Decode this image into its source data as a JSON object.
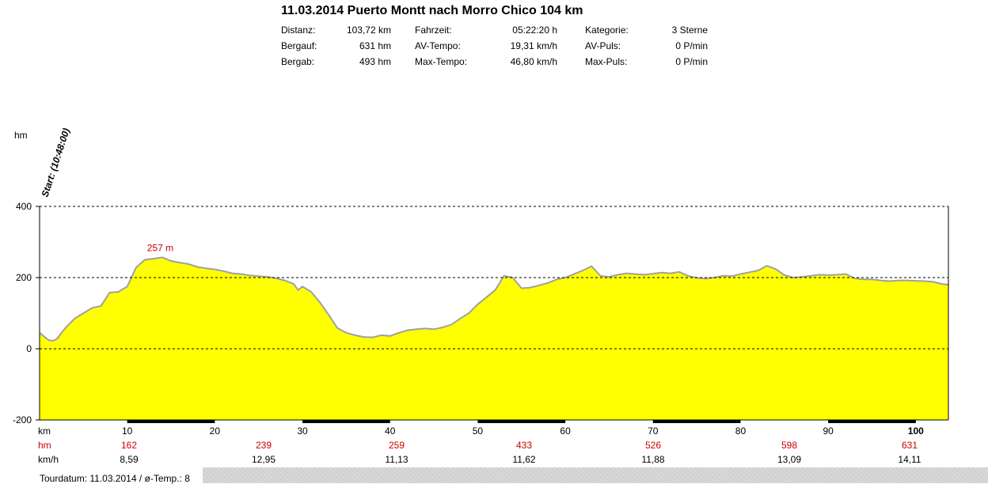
{
  "header": {
    "title": "11.03.2014 Puerto Montt nach Morro Chico 104 km"
  },
  "stats": {
    "col1": [
      {
        "label": "Distanz:",
        "value": "103,72 km"
      },
      {
        "label": "Bergauf:",
        "value": "631 hm"
      },
      {
        "label": "Bergab:",
        "value": "493 hm"
      }
    ],
    "col2": [
      {
        "label": "Fahrzeit:",
        "value": "05:22:20 h"
      },
      {
        "label": "AV-Tempo:",
        "value": "19,31 km/h"
      },
      {
        "label": "Max-Tempo:",
        "value": "46,80 km/h"
      }
    ],
    "col3": [
      {
        "label": "Kategorie:",
        "value": "3 Sterne"
      },
      {
        "label": "AV-Puls:",
        "value": "0 P/min"
      },
      {
        "label": "Max-Puls:",
        "value": "0 P/min"
      }
    ]
  },
  "footer": {
    "text": "Tourdatum: 11.03.2014  /  ø-Temp.: 8"
  },
  "chart_data": {
    "type": "area",
    "ylabel": "hm",
    "xlabel": "km",
    "ylim": [
      -200,
      400
    ],
    "xlim": [
      0,
      103.72
    ],
    "yticks": [
      -200,
      0,
      200,
      400
    ],
    "xticks": [
      10,
      20,
      30,
      40,
      50,
      60,
      70,
      80,
      90,
      100
    ],
    "grid": "dashed horizontal at 0, 200, 400",
    "start_annotation": "Start: (10:48:00)",
    "max_annotation": {
      "x": 13.5,
      "y": 257,
      "text": "257 m"
    },
    "fill_color": "#ffff00",
    "line_color": "#a0a0a0",
    "profile": {
      "x": [
        0,
        0.5,
        1,
        1.5,
        2,
        2.5,
        3,
        4,
        5,
        6,
        7,
        8,
        9,
        10,
        11,
        12,
        13,
        14,
        15,
        16,
        17,
        18,
        19,
        20,
        21,
        22,
        23,
        24,
        25,
        26,
        27,
        28,
        29,
        29.5,
        30,
        31,
        32,
        33,
        34,
        35,
        36,
        37,
        38,
        39,
        40,
        41,
        42,
        43,
        44,
        45,
        46,
        47,
        48,
        49,
        50,
        51,
        52,
        53,
        54,
        55,
        56,
        57,
        58,
        59,
        60,
        61,
        62,
        63,
        64,
        65,
        66,
        67,
        68,
        69,
        70,
        71,
        72,
        73,
        74,
        75,
        76,
        77,
        78,
        79,
        80,
        81,
        82,
        83,
        84,
        85,
        86,
        87,
        88,
        89,
        90,
        91,
        92,
        93,
        94,
        95,
        96,
        97,
        98,
        99,
        100,
        101,
        102,
        103,
        103.72
      ],
      "y": [
        45,
        35,
        25,
        22,
        28,
        45,
        60,
        85,
        100,
        115,
        120,
        158,
        160,
        175,
        228,
        250,
        253,
        257,
        247,
        242,
        238,
        230,
        226,
        223,
        218,
        212,
        210,
        206,
        204,
        202,
        198,
        192,
        182,
        165,
        175,
        160,
        130,
        95,
        58,
        45,
        38,
        33,
        32,
        38,
        36,
        45,
        52,
        55,
        57,
        55,
        60,
        68,
        85,
        100,
        125,
        145,
        165,
        205,
        200,
        170,
        172,
        178,
        185,
        195,
        200,
        210,
        220,
        232,
        205,
        202,
        208,
        212,
        210,
        208,
        211,
        214,
        212,
        216,
        205,
        199,
        197,
        200,
        205,
        204,
        210,
        215,
        220,
        233,
        224,
        207,
        200,
        202,
        205,
        208,
        207,
        208,
        210,
        198,
        195,
        195,
        192,
        190,
        192,
        192,
        191,
        190,
        188,
        182,
        180
      ]
    },
    "table": {
      "row_labels": [
        "km",
        "hm",
        "km/h"
      ],
      "columns": [
        {
          "km": "10",
          "hm": "162",
          "kmh": "8,59"
        },
        {
          "km": "20",
          "hm": "239",
          "kmh": "12,95"
        },
        {
          "km": "30",
          "hm": "259",
          "kmh": "11,13"
        },
        {
          "km": "40",
          "hm": "433",
          "kmh": "11,62"
        },
        {
          "km": "50",
          "hm": "526",
          "kmh": "11,88"
        },
        {
          "km": "60",
          "hm": "598",
          "kmh": "13,09"
        },
        {
          "km": "70",
          "hm": "631",
          "kmh": "14,11"
        },
        {
          "km": "80",
          "hm": "",
          "kmh": ""
        },
        {
          "km": "90",
          "hm": "",
          "kmh": ""
        },
        {
          "km": "100",
          "hm": "",
          "kmh": ""
        }
      ]
    }
  }
}
